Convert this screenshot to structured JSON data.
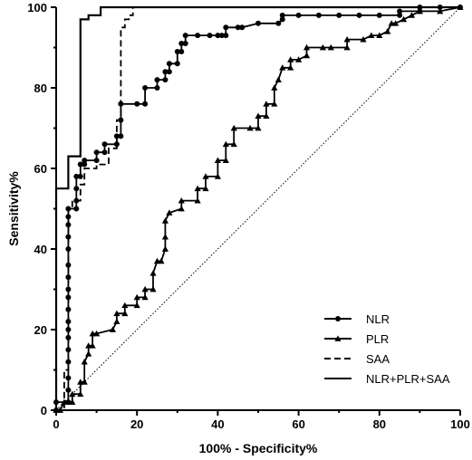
{
  "chart_data": {
    "type": "line",
    "xlabel": "100% - Specificity%",
    "ylabel": "Sensitivity%",
    "xlim": [
      0,
      100
    ],
    "ylim": [
      0,
      100
    ],
    "x_ticks": [
      "0",
      "20",
      "40",
      "60",
      "80",
      "100"
    ],
    "y_ticks": [
      "0",
      "20",
      "40",
      "60",
      "80",
      "100"
    ],
    "reference_line": "diagonal dotted",
    "grid": false,
    "legend_position": "bottom-right",
    "series": [
      {
        "name": "NLR",
        "style": "solid-circle-markers",
        "color": "#000000",
        "points": [
          [
            0,
            0
          ],
          [
            0,
            2
          ],
          [
            3,
            2
          ],
          [
            3,
            5
          ],
          [
            3,
            8
          ],
          [
            3,
            12
          ],
          [
            3,
            15
          ],
          [
            3,
            18
          ],
          [
            3,
            20
          ],
          [
            3,
            22
          ],
          [
            3,
            25
          ],
          [
            3,
            28
          ],
          [
            3,
            30
          ],
          [
            3,
            33
          ],
          [
            3,
            36
          ],
          [
            3,
            40
          ],
          [
            3,
            43
          ],
          [
            3,
            46
          ],
          [
            3,
            48
          ],
          [
            3,
            50
          ],
          [
            5,
            50
          ],
          [
            5,
            52
          ],
          [
            5,
            55
          ],
          [
            5,
            58
          ],
          [
            6,
            58
          ],
          [
            6,
            61
          ],
          [
            7,
            61
          ],
          [
            7,
            62
          ],
          [
            10,
            62
          ],
          [
            10,
            64
          ],
          [
            12,
            64
          ],
          [
            12,
            66
          ],
          [
            15,
            66
          ],
          [
            15,
            68
          ],
          [
            16,
            68
          ],
          [
            16,
            72
          ],
          [
            16,
            76
          ],
          [
            20,
            76
          ],
          [
            22,
            76
          ],
          [
            22,
            80
          ],
          [
            25,
            80
          ],
          [
            25,
            82
          ],
          [
            27,
            82
          ],
          [
            27,
            84
          ],
          [
            28,
            84
          ],
          [
            28,
            86
          ],
          [
            30,
            86
          ],
          [
            30,
            89
          ],
          [
            31,
            89
          ],
          [
            31,
            91
          ],
          [
            32,
            91
          ],
          [
            32,
            93
          ],
          [
            35,
            93
          ],
          [
            38,
            93
          ],
          [
            40,
            93
          ],
          [
            41,
            93
          ],
          [
            42,
            93
          ],
          [
            42,
            95
          ],
          [
            45,
            95
          ],
          [
            46,
            95
          ],
          [
            50,
            96
          ],
          [
            55,
            96
          ],
          [
            56,
            97
          ],
          [
            56,
            98
          ],
          [
            60,
            98
          ],
          [
            65,
            98
          ],
          [
            70,
            98
          ],
          [
            75,
            98
          ],
          [
            80,
            98
          ],
          [
            85,
            98
          ],
          [
            85,
            99
          ],
          [
            90,
            99
          ],
          [
            90,
            100
          ],
          [
            95,
            100
          ],
          [
            100,
            100
          ]
        ]
      },
      {
        "name": "PLR",
        "style": "solid-triangle-markers",
        "color": "#000000",
        "points": [
          [
            0,
            0
          ],
          [
            1,
            0
          ],
          [
            2,
            2
          ],
          [
            3,
            2
          ],
          [
            4,
            2
          ],
          [
            4,
            4
          ],
          [
            6,
            4
          ],
          [
            6,
            7
          ],
          [
            7,
            7
          ],
          [
            7,
            12
          ],
          [
            8,
            14
          ],
          [
            8,
            16
          ],
          [
            9,
            16
          ],
          [
            9,
            19
          ],
          [
            10,
            19
          ],
          [
            14,
            20
          ],
          [
            15,
            22
          ],
          [
            15,
            24
          ],
          [
            17,
            24
          ],
          [
            17,
            26
          ],
          [
            20,
            26
          ],
          [
            20,
            28
          ],
          [
            22,
            28
          ],
          [
            22,
            30
          ],
          [
            24,
            30
          ],
          [
            24,
            34
          ],
          [
            25,
            37
          ],
          [
            26,
            37
          ],
          [
            27,
            40
          ],
          [
            27,
            43
          ],
          [
            27,
            47
          ],
          [
            28,
            49
          ],
          [
            31,
            50
          ],
          [
            31,
            52
          ],
          [
            35,
            52
          ],
          [
            35,
            55
          ],
          [
            37,
            55
          ],
          [
            37,
            58
          ],
          [
            40,
            58
          ],
          [
            40,
            62
          ],
          [
            42,
            62
          ],
          [
            42,
            66
          ],
          [
            44,
            66
          ],
          [
            44,
            70
          ],
          [
            48,
            70
          ],
          [
            50,
            70
          ],
          [
            50,
            73
          ],
          [
            52,
            73
          ],
          [
            52,
            76
          ],
          [
            54,
            76
          ],
          [
            54,
            80
          ],
          [
            55,
            82
          ],
          [
            56,
            85
          ],
          [
            58,
            85
          ],
          [
            58,
            87
          ],
          [
            60,
            87
          ],
          [
            62,
            88
          ],
          [
            62,
            90
          ],
          [
            66,
            90
          ],
          [
            68,
            90
          ],
          [
            72,
            90
          ],
          [
            72,
            92
          ],
          [
            76,
            92
          ],
          [
            78,
            93
          ],
          [
            80,
            93
          ],
          [
            82,
            94
          ],
          [
            83,
            96
          ],
          [
            84,
            96
          ],
          [
            86,
            97
          ],
          [
            88,
            98
          ],
          [
            90,
            99
          ],
          [
            95,
            99
          ],
          [
            100,
            100
          ]
        ]
      },
      {
        "name": "SAA",
        "style": "dashed",
        "color": "#000000",
        "points": [
          [
            0,
            0
          ],
          [
            1,
            0
          ],
          [
            2,
            0
          ],
          [
            2,
            2
          ],
          [
            2,
            10
          ],
          [
            3,
            10
          ],
          [
            3,
            50
          ],
          [
            4,
            50
          ],
          [
            4,
            52
          ],
          [
            6,
            52
          ],
          [
            6,
            56
          ],
          [
            7,
            56
          ],
          [
            7,
            60
          ],
          [
            10,
            60
          ],
          [
            10,
            61
          ],
          [
            13,
            61
          ],
          [
            13,
            65
          ],
          [
            15,
            65
          ],
          [
            15,
            72
          ],
          [
            16,
            72
          ],
          [
            16,
            78
          ],
          [
            16,
            95
          ],
          [
            17,
            95
          ],
          [
            17,
            97
          ],
          [
            18,
            97
          ],
          [
            18,
            98
          ],
          [
            19,
            98
          ],
          [
            19,
            100
          ],
          [
            100,
            100
          ]
        ]
      },
      {
        "name": "NLR+PLR+SAA",
        "style": "solid",
        "color": "#000000",
        "points": [
          [
            0,
            0
          ],
          [
            0,
            55
          ],
          [
            3,
            55
          ],
          [
            3,
            63
          ],
          [
            6,
            63
          ],
          [
            6,
            97
          ],
          [
            8,
            97
          ],
          [
            8,
            98
          ],
          [
            11,
            98
          ],
          [
            11,
            100
          ],
          [
            100,
            100
          ]
        ]
      }
    ]
  }
}
